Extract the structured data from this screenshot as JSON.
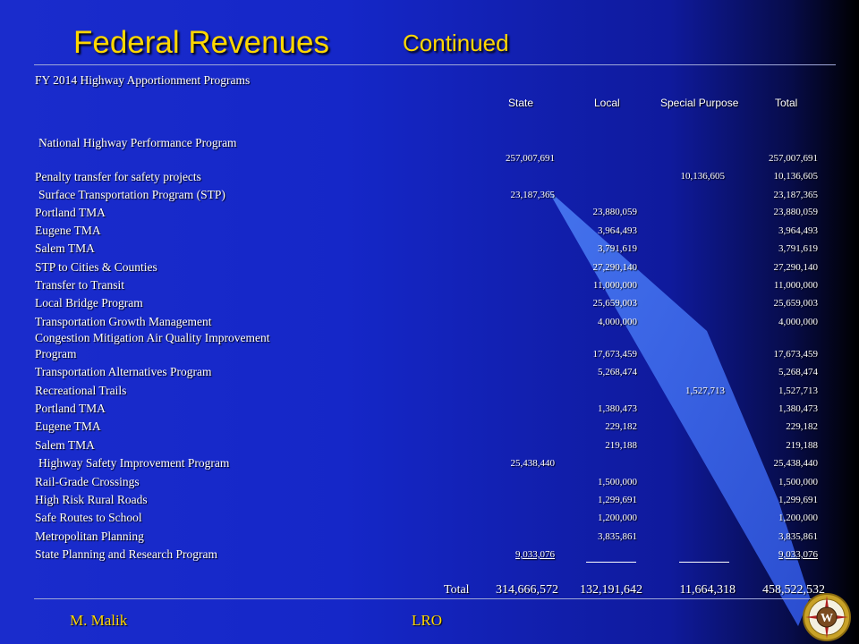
{
  "title": {
    "main": "Federal Revenues",
    "continued": "Continued"
  },
  "subtitle": "FY 2014 Highway Apportionment Programs",
  "columns": {
    "state": "State",
    "local": "Local",
    "special": "Special Purpose",
    "total": "Total"
  },
  "rows": [
    {
      "label": "National Highway Performance Program",
      "state": "257,007,691",
      "local": "",
      "special": "",
      "total": "257,007,691"
    },
    {
      "label": "Penalty transfer for safety projects",
      "state": "",
      "local": "",
      "special": "10,136,605",
      "total": "10,136,605"
    },
    {
      "label": "Surface Transportation Program (STP)",
      "state": "23,187,365",
      "local": "",
      "special": "",
      "total": "23,187,365"
    },
    {
      "label": "Portland TMA",
      "state": "",
      "local": "23,880,059",
      "special": "",
      "total": "23,880,059"
    },
    {
      "label": "Eugene TMA",
      "state": "",
      "local": "3,964,493",
      "special": "",
      "total": "3,964,493"
    },
    {
      "label": "Salem TMA",
      "state": "",
      "local": "3,791,619",
      "special": "",
      "total": "3,791,619"
    },
    {
      "label": "STP to Cities & Counties",
      "state": "",
      "local": "27,290,140",
      "special": "",
      "total": "27,290,140"
    },
    {
      "label": "Transfer to Transit",
      "state": "",
      "local": "11,000,000",
      "special": "",
      "total": "11,000,000"
    },
    {
      "label": "Local Bridge Program",
      "state": "",
      "local": "25,659,003",
      "special": "",
      "total": "25,659,003"
    },
    {
      "label": "Transportation Growth Management",
      "state": "",
      "local": "4,000,000",
      "special": "",
      "total": "4,000,000"
    },
    {
      "label_line1": "Congestion Mitigation Air Quality Improvement",
      "label": "Program",
      "state": "",
      "local": "17,673,459",
      "special": "",
      "total": "17,673,459"
    },
    {
      "label": "Transportation Alternatives Program",
      "state": "",
      "local": "5,268,474",
      "special": "",
      "total": "5,268,474"
    },
    {
      "label": "Recreational Trails",
      "state": "",
      "local": "",
      "special": "1,527,713",
      "total": "1,527,713"
    },
    {
      "label": "Portland TMA",
      "state": "",
      "local": "1,380,473",
      "special": "",
      "total": "1,380,473"
    },
    {
      "label": "Eugene TMA",
      "state": "",
      "local": "229,182",
      "special": "",
      "total": "229,182"
    },
    {
      "label": "Salem TMA",
      "state": "",
      "local": "219,188",
      "special": "",
      "total": "219,188"
    },
    {
      "label": "Highway Safety Improvement Program",
      "state": "25,438,440",
      "local": "",
      "special": "",
      "total": "25,438,440"
    },
    {
      "label": "Rail-Grade Crossings",
      "state": "",
      "local": "1,500,000",
      "special": "",
      "total": "1,500,000"
    },
    {
      "label": "High Risk Rural Roads",
      "state": "",
      "local": "1,299,691",
      "special": "",
      "total": "1,299,691"
    },
    {
      "label": "Safe Routes to School",
      "state": "",
      "local": "1,200,000",
      "special": "",
      "total": "1,200,000"
    },
    {
      "label": "Metropolitan Planning",
      "state": "",
      "local": "3,835,861",
      "special": "",
      "total": "3,835,861"
    },
    {
      "label": "State Planning and Research Program",
      "state": "9,033,076",
      "local": "",
      "special": "",
      "total": "9,033,076"
    }
  ],
  "totals": {
    "label": "Total",
    "state": "314,666,572",
    "local": "132,191,642",
    "special": "11,664,318",
    "total": "458,522,532"
  },
  "footer": {
    "author": "M. Malik",
    "office": "LRO"
  },
  "logo": {
    "letter": "W"
  },
  "colors": {
    "title": "#ffd700",
    "background": "#1a2ccc",
    "wedge": "#3a66ee"
  }
}
